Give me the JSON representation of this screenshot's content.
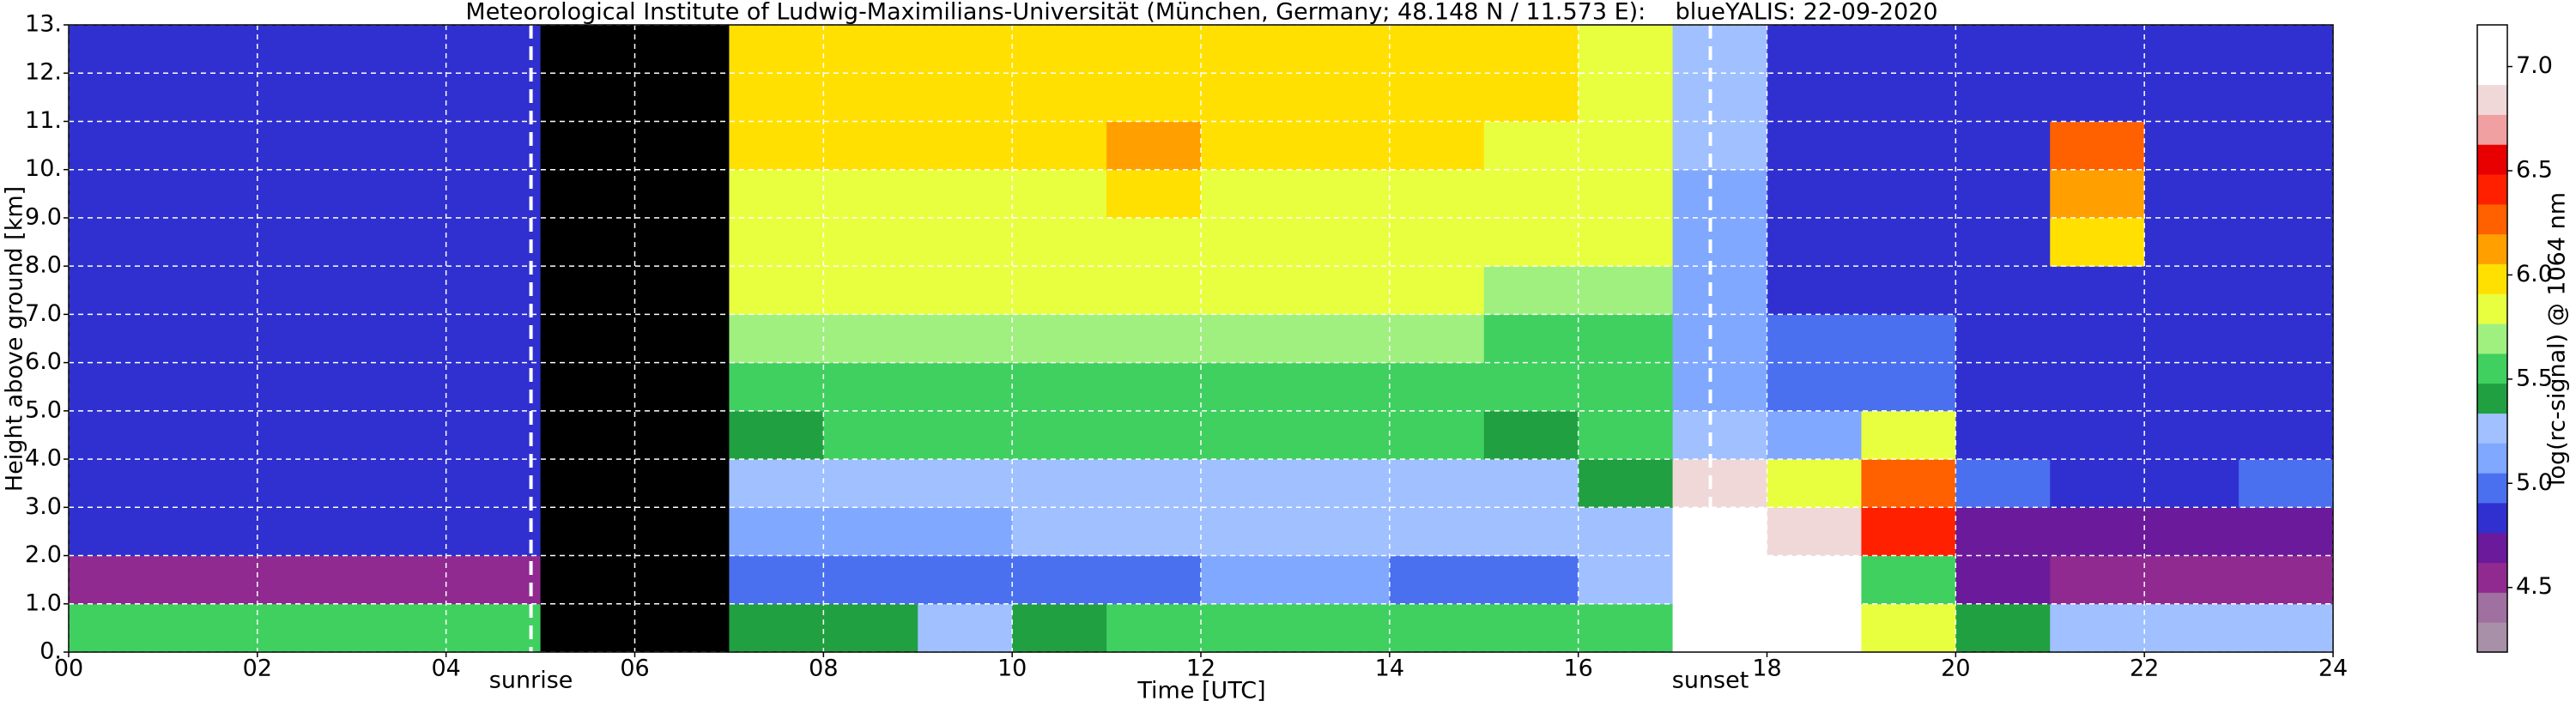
{
  "chart_data": {
    "type": "heatmap",
    "title": "Meteorological Institute of Ludwig-Maximilians-Universität (München, Germany; 48.148 N / 11.573 E):    blueYALIS: 22-09-2020",
    "xlabel": "Time [UTC]",
    "ylabel": "Height above ground [km]",
    "colorbar_label": "log(rc-signal) @ 1064 nm",
    "xlim": [
      0,
      24
    ],
    "ylim": [
      0,
      13
    ],
    "zlim": [
      4.19,
      7.2
    ],
    "xticks": [
      {
        "value": 0,
        "label": "00"
      },
      {
        "value": 2,
        "label": "02"
      },
      {
        "value": 4,
        "label": "04"
      },
      {
        "value": 6,
        "label": "06"
      },
      {
        "value": 8,
        "label": "08"
      },
      10,
      12,
      14,
      16,
      18,
      20,
      22,
      24
    ],
    "yticks": [
      {
        "value": 0,
        "label": "0."
      },
      {
        "value": 1,
        "label": "1.0"
      },
      {
        "value": 2,
        "label": "2.0"
      },
      {
        "value": 3,
        "label": "3.0"
      },
      {
        "value": 4,
        "label": "4.0"
      },
      {
        "value": 5,
        "label": "5.0"
      },
      {
        "value": 6,
        "label": "6.0"
      },
      {
        "value": 7,
        "label": "7.0"
      },
      {
        "value": 8,
        "label": "8.0"
      },
      {
        "value": 9,
        "label": "9.0"
      },
      {
        "value": 10,
        "label": "10."
      },
      {
        "value": 11,
        "label": "11."
      },
      {
        "value": 12,
        "label": "12."
      },
      {
        "value": 13,
        "label": "13."
      }
    ],
    "zticks": [
      4.5,
      {
        "value": 5,
        "label": "5.0"
      },
      5.5,
      {
        "value": 6,
        "label": "6.0"
      },
      6.5,
      {
        "value": 7,
        "label": "7.0"
      }
    ],
    "grid": true,
    "colorscale": [
      "#a890a8",
      "#a070a0",
      "#902a90",
      "#6a1a9a",
      "#3030d0",
      "#4a70f0",
      "#80a8ff",
      "#a0c0ff",
      "#20a040",
      "#40d060",
      "#a0f080",
      "#e8ff40",
      "#ffe000",
      "#ffa000",
      "#ff6000",
      "#ff2000",
      "#e80000",
      "#f0a0a0",
      "#f0d8d8",
      "#ffffff",
      "#ffffff"
    ],
    "x": [
      0,
      1,
      2,
      3,
      4,
      5,
      6,
      7,
      8,
      9,
      10,
      11,
      12,
      13,
      14,
      15,
      16,
      17,
      18,
      19,
      20,
      21,
      22,
      23
    ],
    "y": [
      0,
      1,
      2,
      3,
      4,
      5,
      6,
      7,
      8,
      9,
      10,
      11,
      12
    ],
    "z": [
      [
        5.6,
        5.6,
        5.6,
        5.6,
        5.6,
        null,
        null,
        5.4,
        5.4,
        5.3,
        5.4,
        5.5,
        5.5,
        5.5,
        5.5,
        5.5,
        5.6,
        7.0,
        7.0,
        5.8,
        5.4,
        5.3,
        5.3,
        5.3
      ],
      [
        4.6,
        4.6,
        4.6,
        4.6,
        4.6,
        null,
        null,
        5.0,
        5.0,
        5.0,
        5.0,
        5.0,
        5.1,
        5.1,
        5.0,
        5.0,
        5.2,
        7.0,
        7.0,
        5.6,
        4.7,
        4.6,
        4.6,
        4.6
      ],
      [
        4.9,
        4.9,
        4.9,
        4.9,
        4.9,
        null,
        null,
        5.1,
        5.1,
        5.1,
        5.2,
        5.2,
        5.2,
        5.2,
        5.2,
        5.2,
        5.3,
        7.0,
        6.9,
        6.4,
        4.7,
        4.7,
        4.7,
        4.7
      ],
      [
        4.9,
        4.9,
        4.9,
        4.9,
        4.9,
        null,
        null,
        5.3,
        5.3,
        5.3,
        5.3,
        5.3,
        5.3,
        5.3,
        5.3,
        5.3,
        5.4,
        6.8,
        5.9,
        6.2,
        5.0,
        4.8,
        4.9,
        5.0
      ],
      [
        4.9,
        4.9,
        4.9,
        4.9,
        4.9,
        null,
        null,
        5.4,
        5.5,
        5.5,
        5.5,
        5.5,
        5.5,
        5.5,
        5.5,
        5.4,
        5.6,
        5.3,
        5.1,
        5.8,
        4.9,
        4.9,
        4.9,
        4.9
      ],
      [
        4.9,
        4.9,
        4.9,
        4.9,
        4.9,
        null,
        null,
        5.6,
        5.6,
        5.6,
        5.6,
        5.6,
        5.6,
        5.6,
        5.6,
        5.5,
        5.5,
        5.1,
        5.0,
        5.0,
        4.9,
        4.9,
        4.9,
        4.9
      ],
      [
        4.9,
        4.9,
        4.9,
        4.9,
        4.9,
        null,
        null,
        5.7,
        5.7,
        5.7,
        5.7,
        5.7,
        5.7,
        5.7,
        5.7,
        5.6,
        5.6,
        5.1,
        5.0,
        5.0,
        4.9,
        4.8,
        4.9,
        4.9
      ],
      [
        4.9,
        4.9,
        4.9,
        4.9,
        4.9,
        null,
        null,
        5.8,
        5.8,
        5.8,
        5.8,
        5.8,
        5.8,
        5.8,
        5.8,
        5.7,
        5.7,
        5.1,
        4.9,
        4.9,
        4.8,
        4.8,
        4.8,
        4.8
      ],
      [
        4.8,
        4.8,
        4.8,
        4.8,
        4.8,
        null,
        null,
        5.9,
        5.9,
        5.9,
        5.9,
        5.9,
        5.9,
        5.9,
        5.9,
        5.8,
        5.8,
        5.1,
        4.9,
        4.9,
        4.8,
        6.0,
        4.8,
        4.8
      ],
      [
        4.8,
        4.8,
        4.8,
        4.8,
        4.8,
        null,
        null,
        5.9,
        5.9,
        5.9,
        5.9,
        6.0,
        5.9,
        5.9,
        5.9,
        5.8,
        5.8,
        5.1,
        4.8,
        4.8,
        4.8,
        6.1,
        4.8,
        4.8
      ],
      [
        4.8,
        4.8,
        4.8,
        4.8,
        4.8,
        null,
        null,
        6.0,
        6.0,
        6.0,
        6.0,
        6.1,
        6.0,
        6.0,
        6.0,
        5.9,
        5.9,
        5.2,
        4.8,
        4.8,
        4.8,
        6.2,
        4.8,
        4.8
      ],
      [
        4.8,
        4.8,
        4.8,
        4.8,
        4.8,
        null,
        null,
        6.0,
        6.0,
        6.0,
        6.0,
        6.0,
        6.0,
        6.0,
        6.0,
        6.0,
        5.9,
        5.2,
        4.8,
        4.8,
        4.8,
        4.9,
        4.8,
        4.8
      ],
      [
        4.8,
        4.8,
        4.8,
        4.8,
        4.8,
        null,
        null,
        6.0,
        6.0,
        6.0,
        6.0,
        6.0,
        6.0,
        6.0,
        6.0,
        6.0,
        5.9,
        5.2,
        4.8,
        4.8,
        4.8,
        4.8,
        4.8,
        4.8
      ]
    ],
    "annotations": [
      {
        "text": "sunrise",
        "x": 4.9
      },
      {
        "text": "sunset",
        "x": 17.4
      }
    ]
  }
}
